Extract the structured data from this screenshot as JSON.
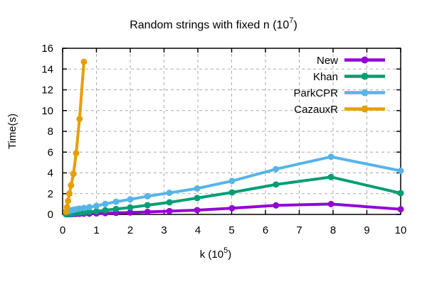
{
  "title": {
    "prefix": "Random strings with fixed n (10",
    "sup": "7",
    "suffix": ")"
  },
  "axes": {
    "y_label": "Time(s)",
    "x_label": {
      "prefix": "k (10",
      "sup": "5",
      "suffix": ")"
    }
  },
  "colors": {
    "frame": "#000000",
    "grid": "#aaaaaa",
    "background": "#ffffff"
  },
  "chart_data": {
    "type": "line",
    "title": "Random strings with fixed n (10^7)",
    "xlabel": "k (10^5)",
    "ylabel": "Time(s)",
    "xlim": [
      0,
      10
    ],
    "ylim": [
      0,
      16
    ],
    "xticks": [
      0,
      1,
      2,
      3,
      4,
      5,
      6,
      7,
      8,
      9,
      10
    ],
    "yticks": [
      0,
      2,
      4,
      6,
      8,
      10,
      12,
      14,
      16
    ],
    "grid": true,
    "legend_position": "top-right",
    "legend_order": [
      "New",
      "Khan",
      "ParkCPR",
      "CazauxR"
    ],
    "series": [
      {
        "name": "New",
        "color": "#9400d3",
        "x": [
          0.1,
          0.13,
          0.16,
          0.2,
          0.25,
          0.32,
          0.4,
          0.5,
          0.63,
          0.79,
          1.0,
          1.26,
          1.58,
          2.0,
          2.51,
          3.16,
          3.98,
          5.01,
          6.31,
          7.94,
          10.0
        ],
        "y": [
          0.02,
          0.02,
          0.02,
          0.03,
          0.03,
          0.04,
          0.05,
          0.06,
          0.07,
          0.08,
          0.1,
          0.12,
          0.15,
          0.18,
          0.24,
          0.32,
          0.41,
          0.6,
          0.87,
          1.0,
          0.5
        ]
      },
      {
        "name": "Khan",
        "color": "#009e73",
        "x": [
          0.1,
          0.13,
          0.16,
          0.2,
          0.25,
          0.32,
          0.4,
          0.5,
          0.63,
          0.79,
          1.0,
          1.26,
          1.58,
          2.0,
          2.51,
          3.16,
          3.98,
          5.01,
          6.31,
          7.94,
          10.0
        ],
        "y": [
          0.03,
          0.04,
          0.05,
          0.06,
          0.08,
          0.1,
          0.13,
          0.16,
          0.19,
          0.24,
          0.3,
          0.4,
          0.52,
          0.67,
          0.89,
          1.16,
          1.58,
          2.12,
          2.88,
          3.6,
          2.05
        ]
      },
      {
        "name": "ParkCPR",
        "color": "#56b4e9",
        "x": [
          0.1,
          0.13,
          0.16,
          0.2,
          0.25,
          0.32,
          0.4,
          0.5,
          0.63,
          0.79,
          1.0,
          1.26,
          1.58,
          2.0,
          2.51,
          3.16,
          3.98,
          5.01,
          6.31,
          7.94,
          10.0
        ],
        "y": [
          0.25,
          0.28,
          0.31,
          0.35,
          0.39,
          0.44,
          0.5,
          0.56,
          0.62,
          0.7,
          0.82,
          1.01,
          1.22,
          1.45,
          1.75,
          2.08,
          2.5,
          3.22,
          4.36,
          5.55,
          4.2
        ]
      },
      {
        "name": "CazauxR",
        "color": "#e69f00",
        "x": [
          0.1,
          0.13,
          0.16,
          0.2,
          0.25,
          0.32,
          0.4,
          0.5,
          0.63
        ],
        "y": [
          0.25,
          0.7,
          1.3,
          2.0,
          2.8,
          3.9,
          5.9,
          9.2,
          14.7
        ]
      }
    ]
  }
}
